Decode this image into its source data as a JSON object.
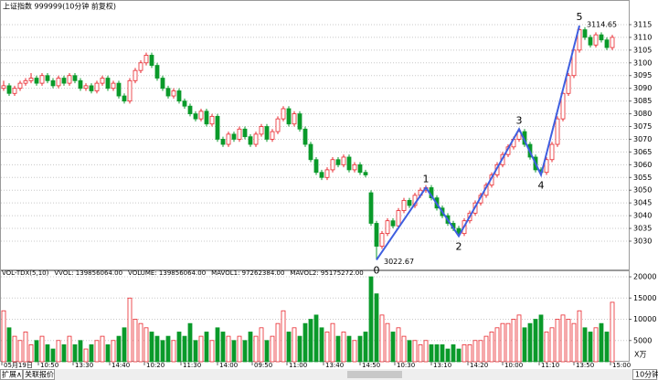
{
  "chart_data": {
    "type": "candlestick",
    "title": "上证指数 999999(10分钟 前复权)",
    "up_color": "#e8262c",
    "down_color": "#0a9a2a",
    "wave_color": "#3f5fe0",
    "ylim": [
      3019.6,
      3121.8
    ],
    "yticks": [
      3030,
      3035,
      3040,
      3045,
      3050,
      3055,
      3060,
      3065,
      3070,
      3075,
      3080,
      3085,
      3090,
      3095,
      3100,
      3105,
      3110,
      3115
    ],
    "grid": true,
    "candles": [
      [
        3090,
        3093,
        3089,
        3091
      ],
      [
        3091,
        3092,
        3087,
        3088
      ],
      [
        3088,
        3091,
        3087,
        3090
      ],
      [
        3090,
        3093,
        3089,
        3092
      ],
      [
        3092,
        3094,
        3091,
        3093
      ],
      [
        3093,
        3096,
        3092,
        3094
      ],
      [
        3094,
        3095,
        3091,
        3092
      ],
      [
        3092,
        3096,
        3091,
        3095
      ],
      [
        3095,
        3096,
        3092,
        3093
      ],
      [
        3093,
        3094,
        3090,
        3091
      ],
      [
        3091,
        3095,
        3090,
        3094
      ],
      [
        3094,
        3095,
        3091,
        3092
      ],
      [
        3092,
        3096,
        3091,
        3095
      ],
      [
        3095,
        3096,
        3092,
        3093
      ],
      [
        3093,
        3094,
        3089,
        3090
      ],
      [
        3090,
        3092,
        3089,
        3091
      ],
      [
        3091,
        3092,
        3088,
        3089
      ],
      [
        3089,
        3093,
        3088,
        3092
      ],
      [
        3092,
        3095,
        3091,
        3094
      ],
      [
        3094,
        3095,
        3089,
        3090
      ],
      [
        3090,
        3093,
        3089,
        3092
      ],
      [
        3092,
        3093,
        3086,
        3087
      ],
      [
        3087,
        3088,
        3084,
        3085
      ],
      [
        3085,
        3094,
        3084,
        3093
      ],
      [
        3093,
        3098,
        3092,
        3097
      ],
      [
        3097,
        3101,
        3096,
        3100
      ],
      [
        3100,
        3104,
        3099,
        3103
      ],
      [
        3103,
        3104,
        3098,
        3099
      ],
      [
        3099,
        3100,
        3093,
        3094
      ],
      [
        3094,
        3095,
        3089,
        3090
      ],
      [
        3090,
        3091,
        3086,
        3087
      ],
      [
        3087,
        3090,
        3086,
        3089
      ],
      [
        3089,
        3090,
        3084,
        3085
      ],
      [
        3085,
        3086,
        3082,
        3083
      ],
      [
        3083,
        3084,
        3079,
        3080
      ],
      [
        3080,
        3081,
        3077,
        3078
      ],
      [
        3078,
        3082,
        3077,
        3081
      ],
      [
        3081,
        3082,
        3075,
        3076
      ],
      [
        3076,
        3080,
        3075,
        3079
      ],
      [
        3079,
        3080,
        3069,
        3070
      ],
      [
        3070,
        3071,
        3067,
        3068
      ],
      [
        3068,
        3073,
        3067,
        3072
      ],
      [
        3072,
        3073,
        3069,
        3070
      ],
      [
        3070,
        3075,
        3069,
        3074
      ],
      [
        3074,
        3075,
        3070,
        3071
      ],
      [
        3071,
        3072,
        3067,
        3068
      ],
      [
        3068,
        3073,
        3067,
        3072
      ],
      [
        3072,
        3076,
        3071,
        3075
      ],
      [
        3075,
        3076,
        3069,
        3070
      ],
      [
        3070,
        3074,
        3069,
        3073
      ],
      [
        3073,
        3079,
        3072,
        3078
      ],
      [
        3078,
        3083,
        3077,
        3082
      ],
      [
        3082,
        3083,
        3075,
        3076
      ],
      [
        3076,
        3081,
        3075,
        3080
      ],
      [
        3080,
        3081,
        3073,
        3074
      ],
      [
        3074,
        3075,
        3067,
        3068
      ],
      [
        3068,
        3069,
        3061,
        3062
      ],
      [
        3062,
        3063,
        3056,
        3057
      ],
      [
        3057,
        3058,
        3054,
        3055
      ],
      [
        3055,
        3059,
        3054,
        3058
      ],
      [
        3058,
        3063,
        3057,
        3062
      ],
      [
        3062,
        3063,
        3059,
        3060
      ],
      [
        3060,
        3064,
        3059,
        3063
      ],
      [
        3063,
        3064,
        3057,
        3058
      ],
      [
        3058,
        3061,
        3057,
        3060
      ],
      [
        3060,
        3061,
        3056,
        3057
      ],
      [
        3057,
        3058,
        3055,
        3056
      ],
      [
        3049,
        3050,
        3036,
        3037
      ],
      [
        3037,
        3038,
        3022.67,
        3028
      ],
      [
        3028,
        3034,
        3027,
        3033
      ],
      [
        3033,
        3039,
        3032,
        3038
      ],
      [
        3038,
        3039,
        3035,
        3036
      ],
      [
        3036,
        3043,
        3035,
        3042
      ],
      [
        3042,
        3047,
        3041,
        3046
      ],
      [
        3046,
        3047,
        3043,
        3044
      ],
      [
        3044,
        3049,
        3043,
        3048
      ],
      [
        3048,
        3051,
        3047,
        3050
      ],
      [
        3050,
        3052,
        3049,
        3051
      ],
      [
        3051,
        3052,
        3046,
        3047
      ],
      [
        3047,
        3048,
        3042,
        3043
      ],
      [
        3043,
        3044,
        3039,
        3040
      ],
      [
        3040,
        3041,
        3036,
        3037
      ],
      [
        3037,
        3038,
        3034,
        3035
      ],
      [
        3035,
        3036,
        3032,
        3033
      ],
      [
        3033,
        3039,
        3032,
        3038
      ],
      [
        3038,
        3042,
        3037,
        3041
      ],
      [
        3041,
        3046,
        3040,
        3045
      ],
      [
        3045,
        3049,
        3044,
        3048
      ],
      [
        3048,
        3053,
        3047,
        3052
      ],
      [
        3052,
        3057,
        3051,
        3056
      ],
      [
        3056,
        3061,
        3055,
        3060
      ],
      [
        3060,
        3065,
        3059,
        3064
      ],
      [
        3064,
        3068,
        3063,
        3067
      ],
      [
        3067,
        3071,
        3066,
        3070
      ],
      [
        3070,
        3074,
        3069,
        3073
      ],
      [
        3073,
        3074,
        3067,
        3068
      ],
      [
        3068,
        3069,
        3062,
        3063
      ],
      [
        3063,
        3064,
        3057,
        3058
      ],
      [
        3058,
        3059,
        3056,
        3057
      ],
      [
        3057,
        3063,
        3056,
        3062
      ],
      [
        3062,
        3069,
        3061,
        3068
      ],
      [
        3068,
        3079,
        3067,
        3078
      ],
      [
        3078,
        3089,
        3077,
        3088
      ],
      [
        3088,
        3096,
        3087,
        3095
      ],
      [
        3095,
        3106,
        3094,
        3105
      ],
      [
        3105,
        3114.65,
        3104,
        3113
      ],
      [
        3113,
        3114,
        3109,
        3110
      ],
      [
        3110,
        3111,
        3106,
        3107
      ],
      [
        3107,
        3112,
        3106,
        3111
      ],
      [
        3111,
        3112,
        3108,
        3109
      ],
      [
        3109,
        3110,
        3105,
        3106
      ],
      [
        3106,
        3111,
        3105,
        3110
      ]
    ],
    "volumes": [
      12000,
      8000,
      6000,
      5000,
      7000,
      4000,
      5000,
      6000,
      4000,
      3000,
      5000,
      4000,
      6000,
      4000,
      5000,
      3000,
      4000,
      5000,
      6000,
      4000,
      5000,
      6000,
      8000,
      15000,
      10000,
      9000,
      8000,
      7000,
      6000,
      5000,
      6000,
      5000,
      7000,
      6000,
      9000,
      5000,
      6000,
      7000,
      5000,
      8000,
      7000,
      6000,
      5000,
      6000,
      5000,
      7000,
      6000,
      8000,
      5000,
      6000,
      9000,
      12000,
      7000,
      8000,
      6000,
      9000,
      10000,
      11000,
      8000,
      7000,
      9000,
      6000,
      7000,
      6000,
      5000,
      6000,
      7000,
      20000,
      16000,
      11000,
      9000,
      7000,
      8000,
      6000,
      5000,
      5000,
      4000,
      5000,
      4000,
      4000,
      4000,
      3000,
      4000,
      3000,
      4000,
      4000,
      5000,
      5000,
      6000,
      7000,
      8000,
      9000,
      9000,
      10000,
      11000,
      8000,
      9000,
      10000,
      11000,
      7000,
      8000,
      10000,
      11000,
      10000,
      9000,
      12000,
      8000,
      7000,
      8000,
      9000,
      7000,
      14000
    ],
    "vol_ylim": [
      0,
      21300
    ],
    "vol_yticks": [
      5000,
      10000,
      15000,
      20000
    ],
    "vol_unit": "X万",
    "vol_legend": [
      "VOL-TDX(5,10)",
      "VVOL: 139856064.00",
      "VOLUME: 139856064.00",
      "MAVOL1: 97262384.00",
      "MAVOL2: 95175272.00"
    ],
    "vol_legend_colors": [
      "#000000",
      "#0000c0",
      "#d000d0",
      "#d000d0",
      "#808080"
    ],
    "wave_labels": [
      "0",
      "1",
      "2",
      "3",
      "4",
      "5"
    ],
    "wave_values": [
      3022.67,
      3051,
      3032,
      3074,
      3056,
      3114.65
    ],
    "x_labels": [
      "05月19日",
      "10:50",
      "13:30",
      "14:40",
      "10:20",
      "11:30",
      "14:00",
      "09:50",
      "11:00",
      "13:40",
      "14:50",
      "10:30",
      "13:10",
      "14:20",
      "10:00",
      "11:10",
      "13:50",
      "15:00"
    ],
    "tabs": [
      "扩展∧",
      "关联报价"
    ],
    "period": "10分钟"
  }
}
